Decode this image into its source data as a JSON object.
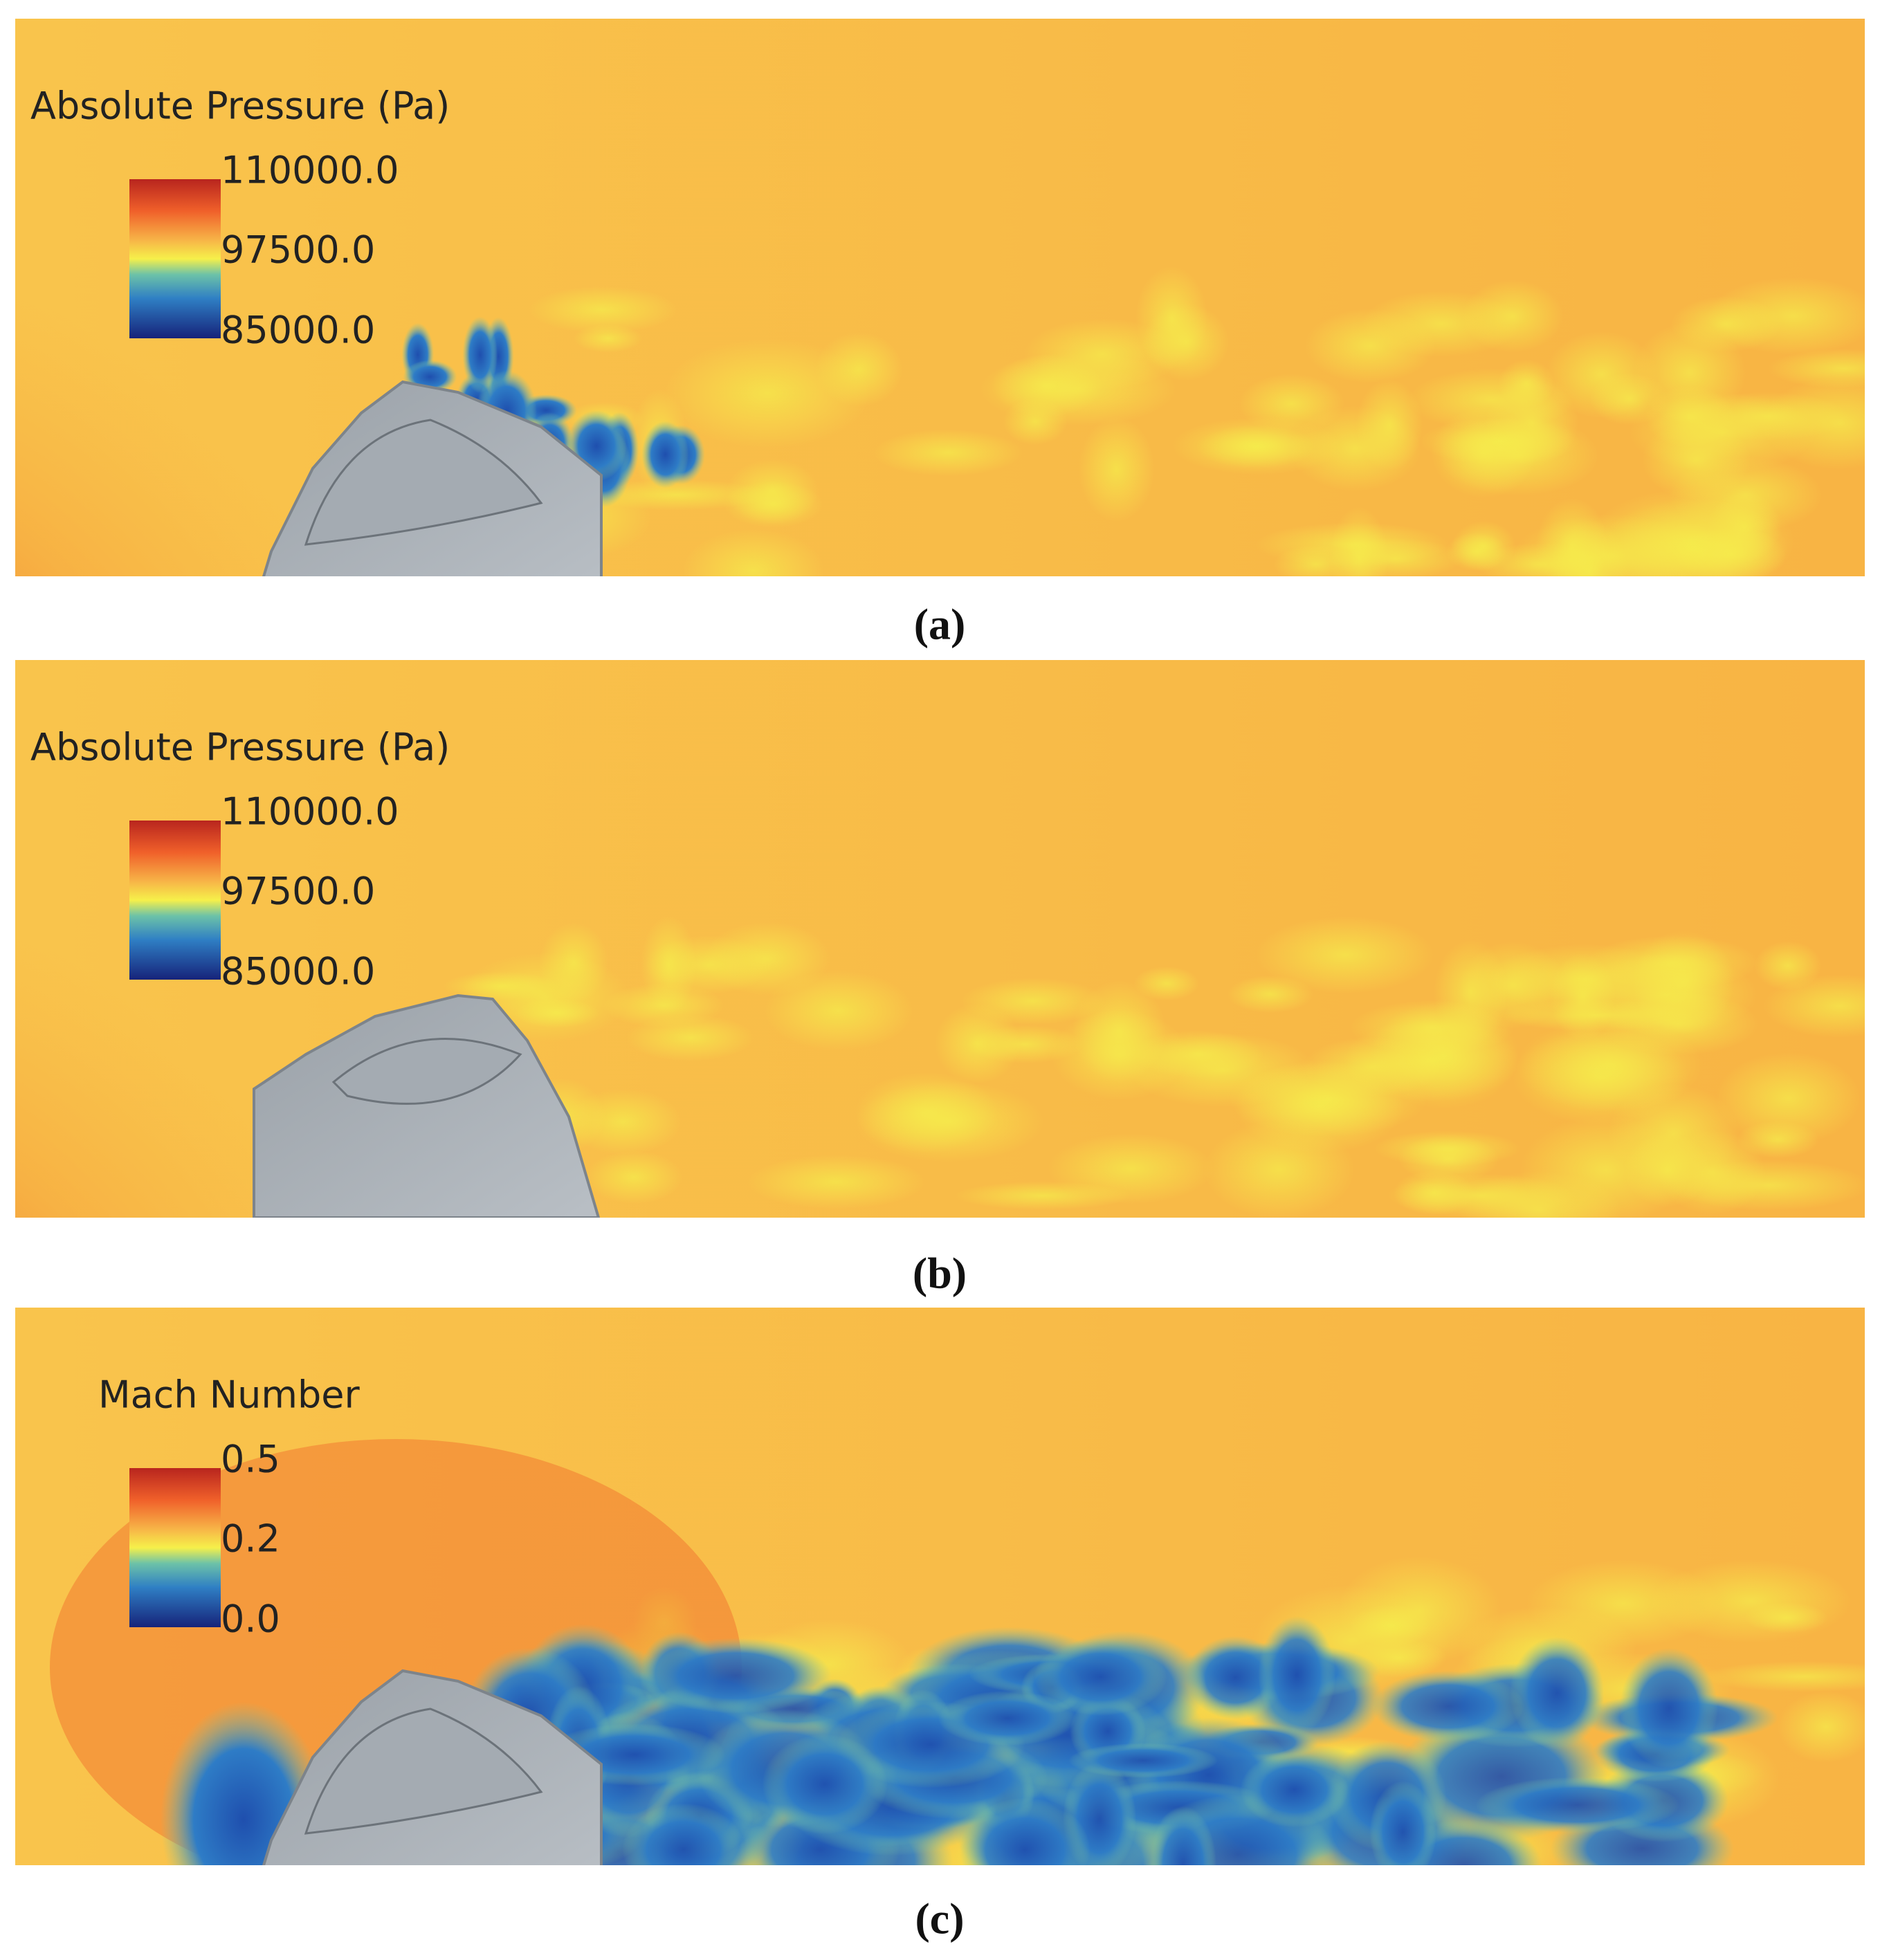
{
  "panels": [
    {
      "legend_title": "Absolute Pressure (Pa)",
      "legend_labels": [
        "110000.0",
        "97500.0",
        "85000.0"
      ],
      "caption": "(a)"
    },
    {
      "legend_title": "Absolute Pressure (Pa)",
      "legend_labels": [
        "110000.0",
        "97500.0",
        "85000.0"
      ],
      "caption": "(b)"
    },
    {
      "legend_title": "Mach Number",
      "legend_labels": [
        "0.5",
        "0.2",
        "0.0"
      ],
      "caption": "(c)"
    }
  ]
}
